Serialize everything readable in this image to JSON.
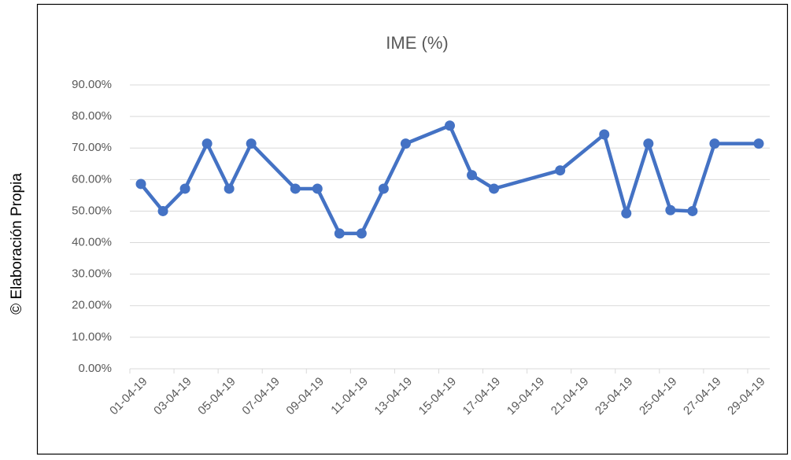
{
  "chart_data": {
    "type": "line",
    "title": "IME (%)",
    "side_note": "© Elaboración Propia",
    "x": [
      "01-04-19",
      "02-04-19",
      "03-04-19",
      "04-04-19",
      "05-04-19",
      "06-04-19",
      "08-04-19",
      "09-04-19",
      "10-04-19",
      "11-04-19",
      "12-04-19",
      "13-04-19",
      "15-04-19",
      "16-04-19",
      "17-04-19",
      "20-04-19",
      "22-04-19",
      "23-04-19",
      "24-04-19",
      "25-04-19",
      "26-04-19",
      "27-04-19",
      "29-04-19"
    ],
    "series": [
      {
        "name": "IME (%)",
        "color": "#4472c4",
        "values": [
          58.6,
          50.0,
          57.1,
          71.4,
          57.1,
          71.4,
          57.1,
          57.1,
          42.9,
          42.9,
          57.1,
          71.4,
          77.1,
          61.4,
          57.1,
          62.9,
          74.3,
          49.3,
          71.4,
          50.3,
          50.0,
          71.4,
          71.4
        ]
      }
    ],
    "xlim": [
      "01-04-19",
      "29-04-19"
    ],
    "xticks": [
      "01-04-19",
      "03-04-19",
      "05-04-19",
      "07-04-19",
      "09-04-19",
      "11-04-19",
      "13-04-19",
      "15-04-19",
      "17-04-19",
      "19-04-19",
      "21-04-19",
      "23-04-19",
      "25-04-19",
      "27-04-19",
      "29-04-19"
    ],
    "ylim": [
      0,
      90
    ],
    "yticks": [
      {
        "value": 0,
        "label": "0.00%"
      },
      {
        "value": 10,
        "label": "10.00%"
      },
      {
        "value": 20,
        "label": "20.00%"
      },
      {
        "value": 30,
        "label": "30.00%"
      },
      {
        "value": 40,
        "label": "40.00%"
      },
      {
        "value": 50,
        "label": "50.00%"
      },
      {
        "value": 60,
        "label": "60.00%"
      },
      {
        "value": 70,
        "label": "70.00%"
      },
      {
        "value": 80,
        "label": "80.00%"
      },
      {
        "value": 90,
        "label": "90.00%"
      }
    ],
    "grid": true
  }
}
